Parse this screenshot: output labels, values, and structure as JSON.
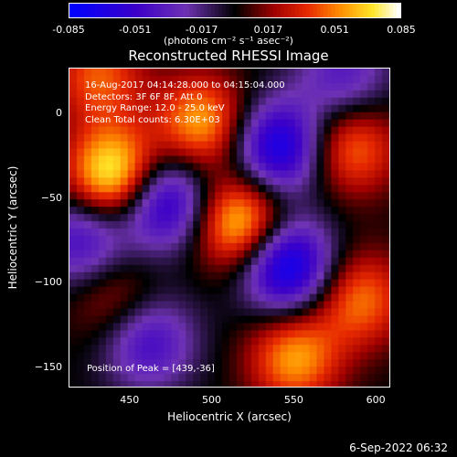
{
  "colorbar": {
    "ticks": [
      "-0.085",
      "-0.051",
      "-0.017",
      "0.017",
      "0.051",
      "0.085"
    ],
    "units_text": "(photons cm⁻² s⁻¹ asec⁻²)",
    "min": -0.085,
    "max": 0.085
  },
  "chart_data": {
    "type": "heatmap",
    "title": "Reconstructed RHESSI Image",
    "xlabel": "Heliocentric X (arcsec)",
    "ylabel": "Heliocentric Y (arcsec)",
    "xlim": [
      412,
      608
    ],
    "ylim": [
      -162,
      27
    ],
    "xticks": [
      "450",
      "500",
      "550",
      "600"
    ],
    "yticks": [
      "0",
      "−50",
      "−100",
      "−150"
    ],
    "colormap": "blue-purple-black-red-orange-yellow-white",
    "peak": [
      439,
      -36
    ],
    "sources": [
      {
        "x": 439,
        "y": -36,
        "amp": 0.085
      },
      {
        "x": 517,
        "y": -65,
        "amp": 0.075
      },
      {
        "x": 493,
        "y": -5,
        "amp": 0.06
      },
      {
        "x": 585,
        "y": -20,
        "amp": 0.05
      },
      {
        "x": 590,
        "y": -110,
        "amp": 0.05
      },
      {
        "x": 550,
        "y": -145,
        "amp": 0.058
      },
      {
        "x": 430,
        "y": 22,
        "amp": 0.045
      },
      {
        "x": 440,
        "y": -110,
        "amp": 0.03
      },
      {
        "x": 470,
        "y": -52,
        "amp": -0.07
      },
      {
        "x": 540,
        "y": -20,
        "amp": -0.075
      },
      {
        "x": 545,
        "y": -90,
        "amp": -0.085
      },
      {
        "x": 460,
        "y": -135,
        "amp": -0.05
      },
      {
        "x": 420,
        "y": -75,
        "amp": -0.05
      },
      {
        "x": 580,
        "y": 22,
        "amp": -0.04
      }
    ],
    "annotations": [
      "16-Aug-2017 04:14:28.000 to 04:15:04.000",
      "Detectors: 3F 6F 8F, Att 0",
      "Energy Range: 12.0 - 25.0 keV",
      "Clean     Total counts: 6.30E+03"
    ],
    "peak_text": "Position of Peak = [439,-36]"
  },
  "footer": {
    "date": "6-Sep-2022 06:32"
  }
}
